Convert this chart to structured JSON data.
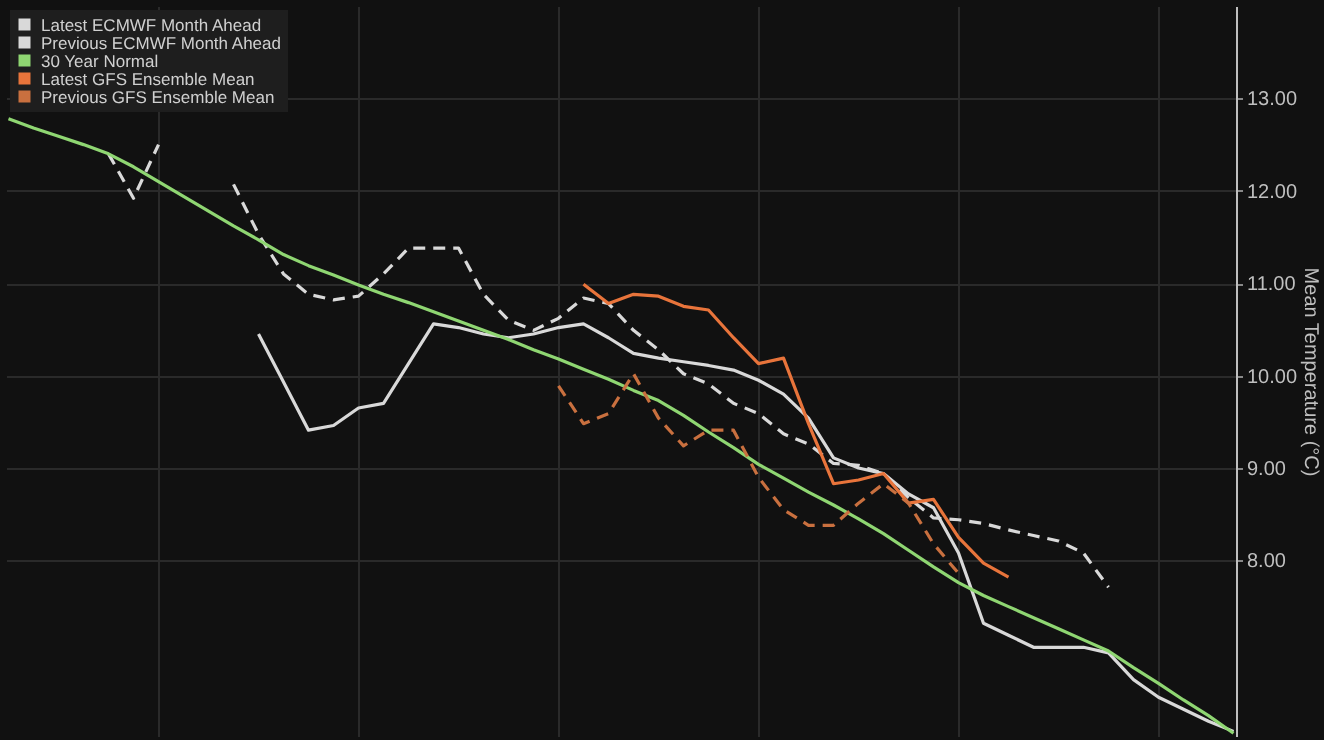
{
  "chart_data": {
    "type": "line",
    "ylabel": "Mean Temperature (°C)",
    "categories": [
      null,
      null,
      null,
      null,
      null,
      null,
      null,
      null,
      null,
      null,
      null,
      null,
      null,
      null,
      null,
      null,
      null,
      null,
      null,
      null,
      null,
      null,
      null,
      null,
      null,
      null,
      null,
      null,
      null,
      null,
      null,
      null,
      null,
      null,
      null,
      null,
      null,
      null,
      null,
      null,
      null,
      null,
      null,
      null,
      null,
      null,
      null,
      null,
      null,
      null
    ],
    "series": [
      {
        "name": "Latest ECMWF Month Ahead",
        "color": "#d9d9d9",
        "line_style": "solid",
        "values": [
          null,
          null,
          null,
          null,
          null,
          null,
          null,
          null,
          null,
          null,
          10.45,
          9.93,
          9.41,
          9.46,
          9.65,
          9.7,
          10.13,
          10.56,
          10.52,
          10.45,
          10.41,
          10.45,
          10.52,
          10.56,
          10.41,
          10.24,
          10.19,
          10.15,
          10.11,
          10.06,
          9.95,
          9.8,
          9.54,
          9.11,
          9.0,
          8.94,
          8.72,
          8.57,
          8.08,
          7.32,
          7.19,
          7.06,
          7.06,
          7.06,
          7.0,
          6.71,
          6.52,
          6.39,
          6.26,
          6.15
        ]
      },
      {
        "name": "Previous ECMWF Month Ahead",
        "color": "#d9d9d9",
        "line_style": "dashed",
        "values": [
          null,
          null,
          null,
          null,
          12.4,
          11.92,
          12.5,
          null,
          null,
          12.07,
          11.53,
          11.1,
          10.88,
          10.82,
          10.86,
          11.1,
          11.38,
          11.38,
          11.38,
          10.88,
          10.6,
          10.49,
          10.62,
          10.84,
          10.78,
          10.49,
          10.28,
          10.02,
          9.91,
          9.7,
          9.59,
          9.37,
          9.26,
          9.05,
          9.03,
          8.94,
          8.68,
          8.46,
          8.44,
          8.4,
          8.33,
          8.27,
          8.21,
          8.08,
          7.71,
          null,
          null,
          null,
          null,
          null
        ]
      },
      {
        "name": "30 Year Normal",
        "color": "#8fd672",
        "line_style": "solid",
        "values": [
          12.78,
          12.68,
          12.59,
          12.5,
          12.4,
          12.26,
          12.1,
          11.94,
          11.78,
          11.62,
          11.47,
          11.31,
          11.19,
          11.09,
          10.98,
          10.88,
          10.79,
          10.69,
          10.59,
          10.49,
          10.39,
          10.28,
          10.18,
          10.07,
          9.96,
          9.84,
          9.73,
          9.57,
          9.39,
          9.22,
          9.04,
          8.89,
          8.74,
          8.6,
          8.45,
          8.29,
          8.11,
          7.93,
          7.76,
          7.62,
          7.5,
          7.38,
          7.26,
          7.14,
          7.02,
          6.84,
          6.67,
          6.49,
          6.32,
          6.13
        ]
      },
      {
        "name": "Latest GFS Ensemble Mean",
        "color": "#e8743b",
        "line_style": "solid",
        "values": [
          null,
          null,
          null,
          null,
          null,
          null,
          null,
          null,
          null,
          null,
          null,
          null,
          null,
          null,
          null,
          null,
          null,
          null,
          null,
          null,
          null,
          null,
          null,
          10.99,
          10.78,
          10.88,
          10.86,
          10.75,
          10.71,
          10.41,
          10.13,
          10.19,
          9.48,
          8.83,
          8.87,
          8.94,
          8.62,
          8.66,
          8.25,
          7.97,
          7.82,
          null,
          null,
          null,
          null,
          null,
          null,
          null,
          null,
          null
        ]
      },
      {
        "name": "Previous GFS Ensemble Mean",
        "color": "#c9703f",
        "line_style": "dashed",
        "values": [
          null,
          null,
          null,
          null,
          null,
          null,
          null,
          null,
          null,
          null,
          null,
          null,
          null,
          null,
          null,
          null,
          null,
          null,
          null,
          null,
          null,
          null,
          9.89,
          9.48,
          9.59,
          10.02,
          9.54,
          9.24,
          9.41,
          9.41,
          8.9,
          8.55,
          8.38,
          8.38,
          8.62,
          8.83,
          8.62,
          8.18,
          7.86,
          null,
          null,
          null,
          null,
          null,
          null,
          null,
          null,
          null,
          null,
          null
        ]
      }
    ],
    "ylim": [
      6.1,
      14.0
    ],
    "yticks": [
      {
        "value": 8,
        "label": "8.00"
      },
      {
        "value": 9,
        "label": "9.00"
      },
      {
        "value": 10,
        "label": "10.00"
      },
      {
        "value": 11,
        "label": "11.00"
      },
      {
        "value": 12,
        "label": "12.00"
      },
      {
        "value": 13,
        "label": "13.00"
      }
    ],
    "grid": true,
    "legend": "top left",
    "tick_labels": "y"
  }
}
